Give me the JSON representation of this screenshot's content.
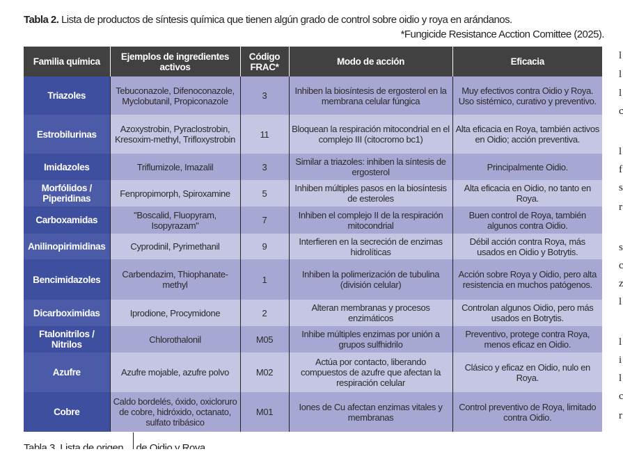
{
  "caption": {
    "label": "Tabla 2.",
    "text": " Lista de productos de síntesis química que tienen algún grado de control sobre oidio y roya en arándanos."
  },
  "source_note": "*Fungicide Resistance Acction Comittee (2025).",
  "table": {
    "headers": [
      "Familia química",
      "Ejemplos de ingredientes activos",
      "Código FRAC*",
      "Modo de acción",
      "Eficacia"
    ],
    "rows": [
      {
        "familia": "Triazoles",
        "ingredientes": "Tebuconazole, Difenoconazole, Myclobutanil, Propiconazole",
        "frac": "3",
        "modo": "Inhiben la biosíntesis de ergosterol en la membrana celular fúngica",
        "eficacia": "Muy efectivos contra Oidio y Roya. Uso sistémico, curativo y preventivo."
      },
      {
        "familia": "Estrobilurinas",
        "ingredientes": "Azoxystrobin, Pyraclostrobin, Kresoxim-methyl, Trifloxystrobin",
        "frac": "11",
        "modo": "Bloquean la respiración mitocondrial en el complejo III (citocromo bc1)",
        "eficacia": "Alta eficacia en Roya, también activos en Oidio; acción preventiva."
      },
      {
        "familia": "Imidazoles",
        "ingredientes": "Triflumizole, Imazalil",
        "frac": "3",
        "modo": "Similar a triazoles: inhiben la síntesis de ergosterol",
        "eficacia": "Principalmente Oidio."
      },
      {
        "familia": "Morfólidos / Piperidinas",
        "ingredientes": "Fenpropimorph, Spiroxamine",
        "frac": "5",
        "modo": "Inhiben múltiples pasos en la biosíntesis de esteroles",
        "eficacia": "Alta eficacia en Oidio, no tanto en Roya."
      },
      {
        "familia": "Carboxamidas",
        "ingredientes": "\"Boscalid, Fluopyram, Isopyrazam\"",
        "frac": "7",
        "modo": "Inhiben el complejo II de la respiración mitocondrial",
        "eficacia": "Buen control de Roya, también algunos contra Oidio."
      },
      {
        "familia": "Anilinopirimidinas",
        "ingredientes": "Cyprodinil, Pyrimethanil",
        "frac": "9",
        "modo": "Interfieren en la secreción de enzimas hidrolíticas",
        "eficacia": "Débil acción contra Roya, más usados en Oidio y Botrytis."
      },
      {
        "familia": "Bencimidazoles",
        "ingredientes": "Carbendazim, Thiophanate-methyl",
        "frac": "1",
        "modo": "Inhiben la polimerización de tubulina (división celular)",
        "eficacia": "Acción sobre Roya y Oidio, pero alta resistencia en muchos patógenos."
      },
      {
        "familia": "Dicarboximidas",
        "ingredientes": "Iprodione, Procymidone",
        "frac": "2",
        "modo": "Alteran membranas y procesos enzimáticos",
        "eficacia": "Controlan algunos Oidio, pero más usados en Botrytis."
      },
      {
        "familia": "Ftalonitrilos / Nitrilos",
        "ingredientes": "Chlorothalonil",
        "frac": "M05",
        "modo": "Inhibe múltiples enzimas por unión a grupos sulfhidrilo",
        "eficacia": "Preventivo, protege contra Roya, menos eficaz en Oidio."
      },
      {
        "familia": "Azufre",
        "ingredientes": "Azufre mojable, azufre polvo",
        "frac": "M02",
        "modo": "Actúa por contacto, liberando compuestos de azufre que afectan la respiración celular",
        "eficacia": "Clásico y eficaz en Oidio, nulo en Roya."
      },
      {
        "familia": "Cobre",
        "ingredientes": "Caldo bordelés, óxido, oxicloruro de cobre, hidróxido, octanato, sulfato tribásico",
        "frac": "M01",
        "modo": "Iones de Cu afectan enzimas vitales y membranas",
        "eficacia": "Control preventivo de Roya, limitado contra Oidio."
      }
    ]
  },
  "clipped_next_caption": "Tabla 3. Lista de origen ... de Oidio y Roya"
}
